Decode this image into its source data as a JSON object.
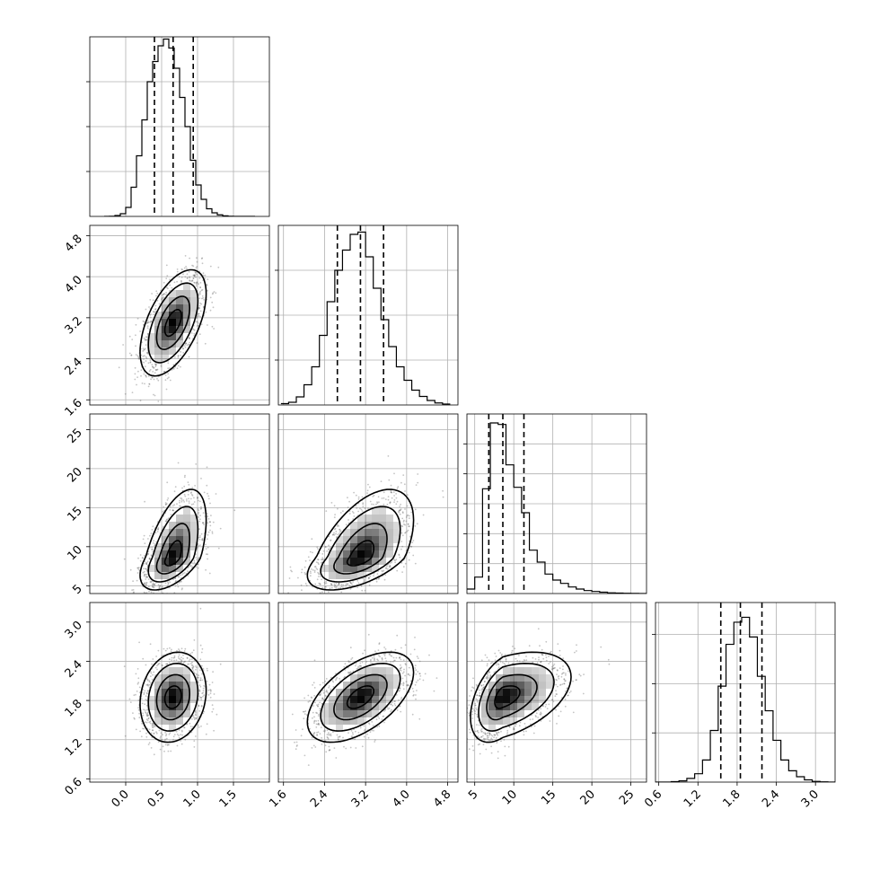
{
  "chart_data": {
    "type": "corner",
    "grid": true,
    "colors": {
      "line": "#000000",
      "grid": "#b0b0b0",
      "points": "#555555",
      "density": "#000000"
    },
    "parameters": [
      {
        "range": [
          -0.5,
          2.0
        ],
        "ticks": [
          0.0,
          0.5,
          1.0,
          1.5
        ],
        "tick_labels": [
          "0.0",
          "0.5",
          "1.0",
          "1.5"
        ],
        "quantiles": [
          0.4,
          0.66,
          0.94
        ],
        "median": 0.66,
        "sd": 0.2,
        "hist_bins": [
          -0.3,
          -0.225,
          -0.15,
          -0.075,
          0.0,
          0.075,
          0.15,
          0.225,
          0.3,
          0.375,
          0.45,
          0.525,
          0.6,
          0.675,
          0.75,
          0.825,
          0.9,
          0.975,
          1.05,
          1.125,
          1.2,
          1.275,
          1.35,
          1.425,
          1.5,
          1.575,
          1.65,
          1.725,
          1.8
        ],
        "hist_counts": [
          0,
          4,
          20,
          60,
          200,
          650,
          1350,
          2150,
          3000,
          3450,
          3800,
          3950,
          3750,
          3300,
          2650,
          2000,
          1250,
          700,
          380,
          170,
          80,
          35,
          12,
          4,
          1,
          0,
          0,
          0
        ],
        "hist_ymax": 4000,
        "hist_yticks": [
          1000,
          2000,
          3000
        ]
      },
      {
        "range": [
          1.5,
          5.0
        ],
        "ticks": [
          1.6,
          2.4,
          3.2,
          4.0,
          4.8
        ],
        "tick_labels": [
          "1.6",
          "2.4",
          "3.2",
          "4.0",
          "4.8"
        ],
        "quantiles": [
          2.65,
          3.1,
          3.55
        ],
        "median": 3.1,
        "sd": 0.45,
        "hist_bins": [
          1.55,
          1.7,
          1.85,
          2.0,
          2.15,
          2.3,
          2.45,
          2.6,
          2.75,
          2.9,
          3.05,
          3.2,
          3.35,
          3.5,
          3.65,
          3.8,
          3.95,
          4.1,
          4.25,
          4.4,
          4.55,
          4.7,
          4.85
        ],
        "hist_counts": [
          30,
          60,
          180,
          450,
          850,
          1550,
          2300,
          3000,
          3450,
          3800,
          3850,
          3300,
          2600,
          1900,
          1300,
          850,
          550,
          330,
          190,
          100,
          45,
          20
        ],
        "hist_ymax": 4000,
        "hist_yticks": [
          1000,
          2000,
          3000
        ]
      },
      {
        "range": [
          4,
          27
        ],
        "ticks": [
          5,
          10,
          15,
          20,
          25
        ],
        "tick_labels": [
          "5",
          "10",
          "15",
          "20",
          "25"
        ],
        "quantiles": [
          6.8,
          8.6,
          11.3
        ],
        "median": 8.6,
        "sd": 2.0,
        "hist_bins": [
          4.0,
          5.0,
          6.0,
          7.0,
          8.0,
          9.0,
          10.0,
          11.0,
          12.0,
          13.0,
          14.0,
          15.0,
          16.0,
          17.0,
          18.0,
          19.0,
          20.0,
          21.0,
          22.0,
          23.0,
          24.0,
          25.0,
          26.0,
          27.0
        ],
        "hist_counts": [
          150,
          550,
          3500,
          5700,
          5650,
          4300,
          3550,
          2700,
          1450,
          1050,
          650,
          450,
          340,
          220,
          150,
          100,
          70,
          45,
          25,
          15,
          8,
          4,
          2
        ],
        "hist_ymax": 6000,
        "hist_yticks": [
          1000,
          2000,
          3000,
          4000,
          5000
        ]
      },
      {
        "range": [
          0.55,
          3.3
        ],
        "ticks": [
          0.6,
          1.2,
          1.8,
          2.4,
          3.0
        ],
        "tick_labels": [
          "0.6",
          "1.2",
          "1.8",
          "2.4",
          "3.0"
        ],
        "quantiles": [
          1.55,
          1.85,
          2.18
        ],
        "median": 1.85,
        "sd": 0.3,
        "hist_bins": [
          0.55,
          0.67,
          0.79,
          0.91,
          1.03,
          1.15,
          1.27,
          1.39,
          1.51,
          1.63,
          1.75,
          1.87,
          1.99,
          2.11,
          2.23,
          2.35,
          2.47,
          2.59,
          2.71,
          2.83,
          2.95,
          3.07,
          3.19,
          3.3
        ],
        "hist_counts": [
          0,
          0,
          10,
          25,
          75,
          170,
          450,
          1050,
          1950,
          2800,
          3250,
          3350,
          2950,
          2150,
          1450,
          850,
          450,
          230,
          110,
          45,
          15,
          5,
          0
        ],
        "hist_ymax": 3650,
        "hist_yticks": [
          1000,
          2000,
          3000
        ]
      }
    ],
    "correlations": [
      [
        1.0,
        0.55,
        0.55,
        0.15
      ],
      [
        0.55,
        1.0,
        0.55,
        0.55
      ],
      [
        0.55,
        0.55,
        1.0,
        0.45
      ],
      [
        0.15,
        0.55,
        0.45,
        1.0
      ]
    ],
    "contour_levels_sigma": [
      0.5,
      1.0,
      1.5,
      2.0
    ],
    "scatter_points_per_panel": 1800
  }
}
